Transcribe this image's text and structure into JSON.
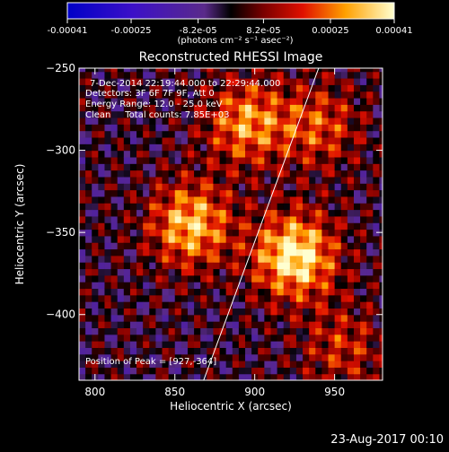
{
  "chart_data": {
    "type": "heatmap",
    "title": "Reconstructed RHESSI Image",
    "xlabel": "Heliocentric X (arcsec)",
    "ylabel": "Heliocentric Y (arcsec)",
    "xlim": [
      790,
      980
    ],
    "ylim": [
      -440,
      -250
    ],
    "x_ticks": [
      800,
      850,
      900,
      950
    ],
    "y_ticks": [
      -250,
      -300,
      -350,
      -400
    ],
    "colorbar": {
      "min": -0.00041,
      "max": 0.00041,
      "tick_values": [
        -0.00041,
        -0.00025,
        -8.2e-05,
        8.2e-05,
        0.00025,
        0.00041
      ],
      "tick_labels": [
        "-0.00041",
        "-0.00025",
        "-8.2e-05",
        "8.2e-05",
        "0.00025",
        "0.00041"
      ],
      "unit_label": "(photons cm⁻² s⁻¹ asec⁻²)"
    },
    "annotations": [
      "7-Dec-2014 22:19:44.000 to 22:29:44.000",
      "Detectors: 3F 6F 7F 9F, Att 0",
      "Energy Range: 12.0 - 25.0 keV",
      "Clean     Total counts: 7.85E+03"
    ],
    "peak_label": "Position of Peak = [927,-364]",
    "peak": [
      927,
      -364
    ],
    "sources": [
      {
        "x": 925,
        "y": -364,
        "intensity": 0.00041
      },
      {
        "x": 860,
        "y": -345,
        "intensity": 0.00033
      },
      {
        "x": 895,
        "y": -283,
        "intensity": 0.00028
      },
      {
        "x": 940,
        "y": -285,
        "intensity": 0.0002
      },
      {
        "x": 955,
        "y": -420,
        "intensity": 0.00016
      }
    ],
    "limb_line": {
      "x": [
        868,
        940
      ],
      "y": [
        -440,
        -250
      ]
    }
  },
  "footer": {
    "timestamp": "23-Aug-2017 00:10"
  },
  "colors": {
    "background": "#000000",
    "foreground": "#ffffff"
  }
}
